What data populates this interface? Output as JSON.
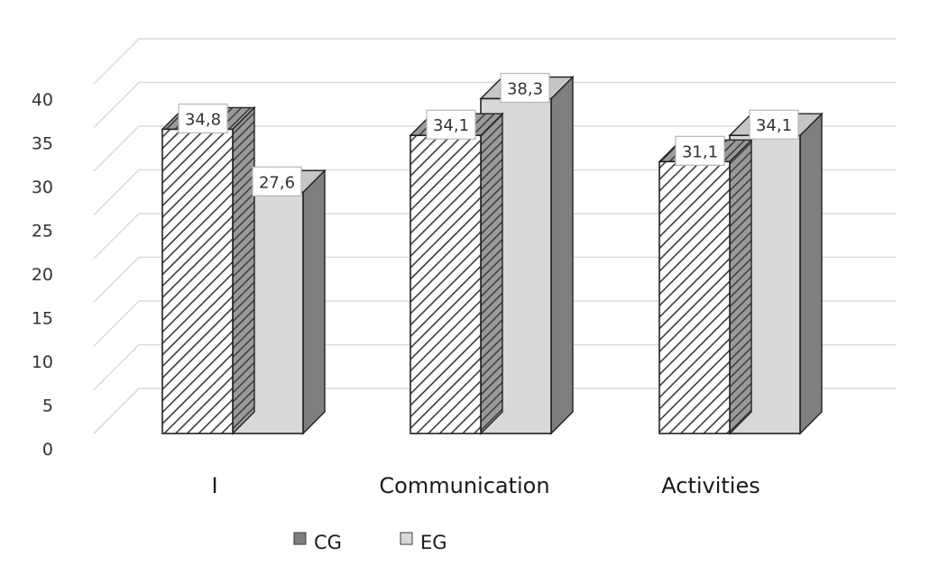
{
  "chart_data": {
    "type": "bar",
    "categories": [
      "I",
      "Communication",
      "Activities"
    ],
    "series": [
      {
        "name": "CG",
        "values": [
          34.8,
          34.1,
          31.1
        ],
        "fill": "hatched",
        "value_labels": [
          "34,8",
          "34,1",
          "31,1"
        ]
      },
      {
        "name": "EG",
        "values": [
          27.6,
          38.3,
          34.1
        ],
        "fill": "#d9d9d9",
        "value_labels": [
          "27,6",
          "38,3",
          "34,1"
        ]
      }
    ],
    "y_ticks": [
      "0",
      "5",
      "10",
      "15",
      "20",
      "25",
      "30",
      "35",
      "40"
    ],
    "ylim": [
      0,
      40
    ],
    "grid": true,
    "style": "3d-clustered-column",
    "legend_position": "bottom-left",
    "colors": {
      "side": "#7f7f7f",
      "eg_front": "#d9d9d9",
      "hatch": "#3c3c3c",
      "grid": "#d9d9d9",
      "border": "#222222"
    }
  }
}
